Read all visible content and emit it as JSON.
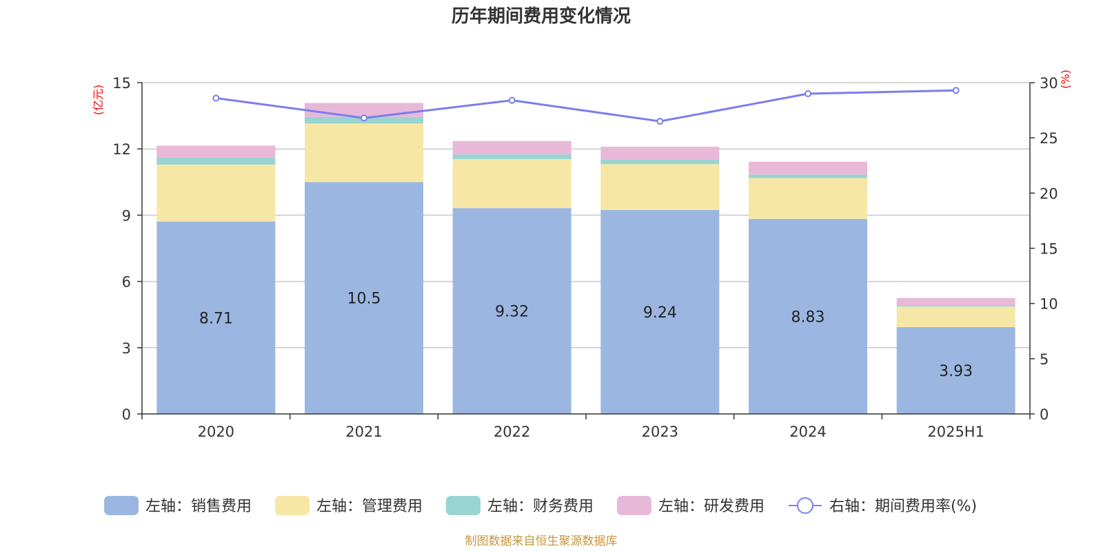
{
  "chart_data": {
    "type": "bar",
    "title": "历年期间费用变化情况",
    "categories": [
      "2020",
      "2021",
      "2022",
      "2023",
      "2024",
      "2025H1"
    ],
    "left_axis": {
      "unit": "(亿元)",
      "ylim": [
        0,
        15
      ],
      "ticks": [
        "0",
        "3",
        "6",
        "9",
        "12",
        "15"
      ]
    },
    "right_axis": {
      "unit": "(%)",
      "ylim": [
        0,
        30
      ],
      "ticks": [
        "0",
        "5",
        "10",
        "15",
        "20",
        "25",
        "30"
      ]
    },
    "stacked": true,
    "grid": true,
    "legend_position": "bottom",
    "series": [
      {
        "name": "左轴：销售费用",
        "color": "#9bb7e1",
        "values": [
          8.71,
          10.5,
          9.32,
          9.24,
          8.83,
          3.93
        ],
        "labels": [
          "8.71",
          "10.5",
          "9.32",
          "9.24",
          "8.83",
          "3.93"
        ]
      },
      {
        "name": "左轴：管理费用",
        "color": "#f7e7a6",
        "values": [
          2.58,
          2.65,
          2.22,
          2.07,
          1.85,
          0.93
        ]
      },
      {
        "name": "左轴：财务费用",
        "color": "#98d4d2",
        "values": [
          0.32,
          0.3,
          0.21,
          0.2,
          0.16,
          0.04
        ]
      },
      {
        "name": "左轴：研发费用",
        "color": "#e8b8d9",
        "values": [
          0.54,
          0.63,
          0.6,
          0.59,
          0.58,
          0.35
        ]
      }
    ],
    "line_series": {
      "name": "右轴：期间费用率(%)",
      "color": "#7b7ded",
      "axis": "right",
      "values": [
        28.6,
        26.8,
        28.4,
        26.5,
        29.0,
        29.3
      ]
    }
  },
  "source": "制图数据来自恒生聚源数据库"
}
